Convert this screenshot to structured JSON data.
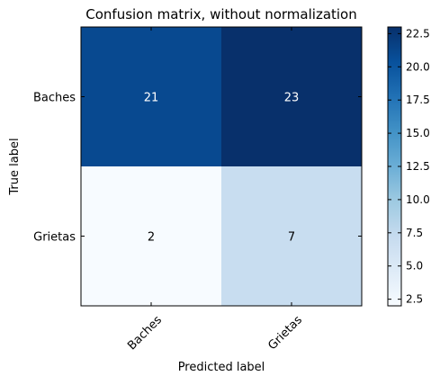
{
  "chart_data": {
    "type": "heatmap",
    "title": "Confusion matrix, without normalization",
    "xlabel": "Predicted label",
    "ylabel": "True label",
    "x_categories": [
      "Baches",
      "Grietas"
    ],
    "y_categories": [
      "Baches",
      "Grietas"
    ],
    "values": [
      [
        21,
        23
      ],
      [
        2,
        7
      ]
    ],
    "colormap": "Blues",
    "colorbar": {
      "min": 2,
      "max": 23,
      "ticks": [
        "2.5",
        "5.0",
        "7.5",
        "10.0",
        "12.5",
        "15.0",
        "17.5",
        "20.0",
        "22.5"
      ]
    },
    "grid": false
  }
}
